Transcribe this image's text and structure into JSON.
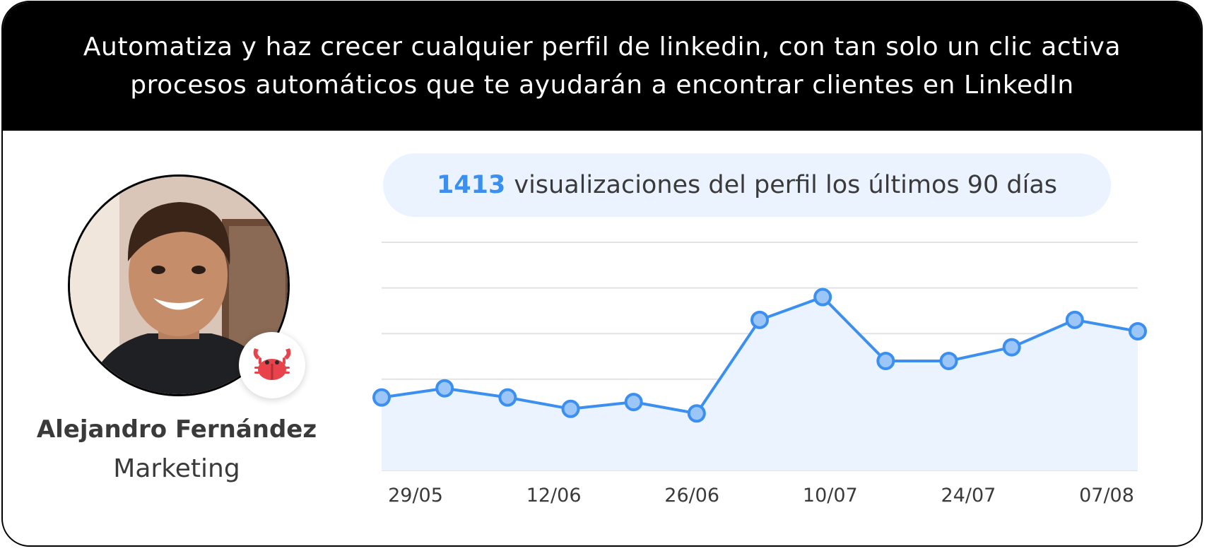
{
  "banner": {
    "line1": "Automatiza y haz crecer cualquier perfil de linkedin, con tan solo un clic activa",
    "line2": "procesos automáticos que te ayudarán a encontrar clientes en LinkedIn"
  },
  "profile": {
    "name": "Alejandro Fernández",
    "role": "Marketing",
    "badge_icon": "crab-icon"
  },
  "stats": {
    "count": "1413",
    "text": "visualizaciones del perfil los últimos 90 días"
  },
  "colors": {
    "accent": "#3b8ff0",
    "point_fill": "#9cc6f7",
    "area_fill": "#eaf3ff",
    "banner_bg": "#000000",
    "pill_bg": "#eaf3ff"
  },
  "chart_data": {
    "type": "line",
    "title": "",
    "xlabel": "",
    "ylabel": "",
    "x_ticks": [
      "29/05",
      "12/06",
      "26/06",
      "10/07",
      "24/07",
      "07/08"
    ],
    "series": [
      {
        "values": [
          16,
          18,
          16,
          13.5,
          15,
          12.5,
          33,
          38,
          24,
          24,
          27,
          33,
          30.5
        ]
      }
    ],
    "ylim": [
      0,
      50
    ],
    "grid": true,
    "legend": "none"
  }
}
